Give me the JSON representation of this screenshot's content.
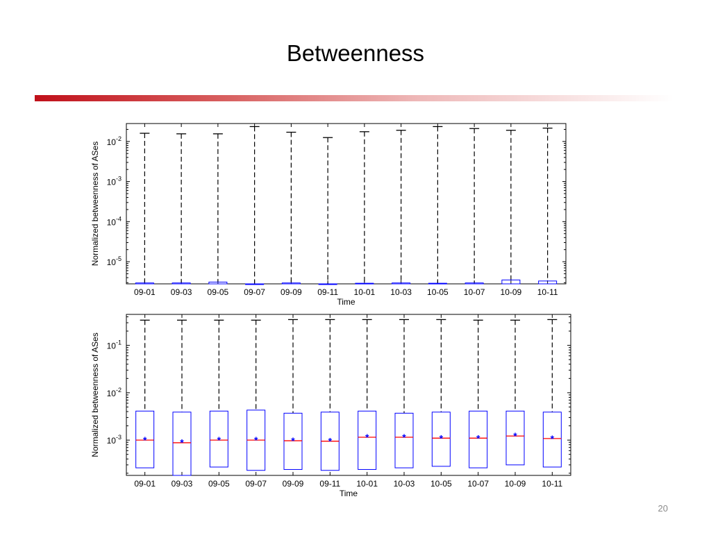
{
  "slide": {
    "title": "Betweenness",
    "page_number": "20"
  },
  "chart_data": [
    {
      "type": "box",
      "xlabel": "Time",
      "ylabel": "Normalized betweenness of ASes",
      "yscale": "log",
      "ylim": [
        2.8e-06,
        0.028
      ],
      "yticks": [
        {
          "value": 1e-05,
          "base": "10",
          "exp": "-5"
        },
        {
          "value": 0.0001,
          "base": "10",
          "exp": "-4"
        },
        {
          "value": 0.001,
          "base": "10",
          "exp": "-3"
        },
        {
          "value": 0.01,
          "base": "10",
          "exp": "-2"
        }
      ],
      "categories": [
        "09-01",
        "09-03",
        "09-05",
        "09-07",
        "09-09",
        "09-11",
        "10-01",
        "10-03",
        "10-05",
        "10-07",
        "10-09",
        "10-11"
      ],
      "whisker_high": [
        0.016,
        0.0155,
        0.0155,
        0.0235,
        0.017,
        0.0125,
        0.0175,
        0.019,
        0.0235,
        0.021,
        0.019,
        0.0215
      ],
      "box_low": [
        2.8e-06,
        2.8e-06,
        2.8e-06,
        2.8e-06,
        2.8e-06,
        2.8e-06,
        2.8e-06,
        2.8e-06,
        2.8e-06,
        2.8e-06,
        2.8e-06,
        2.8e-06
      ],
      "box_high": [
        2.95e-06,
        2.95e-06,
        3.1e-06,
        2.8e-06,
        2.95e-06,
        2.8e-06,
        2.9e-06,
        2.95e-06,
        2.9e-06,
        2.95e-06,
        3.5e-06,
        3.3e-06
      ],
      "median": [],
      "mean": [],
      "colors": {
        "box": "#0000ff",
        "whisker": "#000000",
        "median": "#ff0000",
        "mean_marker": "#0000ff"
      }
    },
    {
      "type": "box",
      "xlabel": "Time",
      "ylabel": "Normalized betweenness of ASes",
      "yscale": "log",
      "ylim": [
        0.00018,
        0.45
      ],
      "yticks": [
        {
          "value": 0.001,
          "base": "10",
          "exp": "-3"
        },
        {
          "value": 0.01,
          "base": "10",
          "exp": "-2"
        },
        {
          "value": 0.1,
          "base": "10",
          "exp": "-1"
        }
      ],
      "categories": [
        "09-01",
        "09-03",
        "09-05",
        "09-07",
        "09-09",
        "09-11",
        "10-01",
        "10-03",
        "10-05",
        "10-07",
        "10-09",
        "10-11"
      ],
      "whisker_high": [
        0.34,
        0.34,
        0.34,
        0.34,
        0.35,
        0.35,
        0.35,
        0.35,
        0.35,
        0.34,
        0.34,
        0.35
      ],
      "box_low": [
        0.00026,
        0.00018,
        0.00027,
        0.00023,
        0.00024,
        0.00023,
        0.00024,
        0.00026,
        0.00028,
        0.00026,
        0.0003,
        0.00027
      ],
      "box_high": [
        0.0041,
        0.0039,
        0.0041,
        0.0043,
        0.0037,
        0.0039,
        0.0041,
        0.0037,
        0.0039,
        0.0041,
        0.0041,
        0.0039
      ],
      "median": [
        0.001,
        0.00088,
        0.001,
        0.001,
        0.00097,
        0.00095,
        0.00115,
        0.00115,
        0.0011,
        0.0011,
        0.00122,
        0.00108
      ],
      "mean": [
        0.001,
        0.00089,
        0.001,
        0.001,
        0.00098,
        0.00095,
        0.00116,
        0.00115,
        0.0011,
        0.0011,
        0.00123,
        0.00108
      ],
      "colors": {
        "box": "#0000ff",
        "whisker": "#000000",
        "median": "#ff0000",
        "mean_marker": "#0000ff"
      }
    }
  ]
}
